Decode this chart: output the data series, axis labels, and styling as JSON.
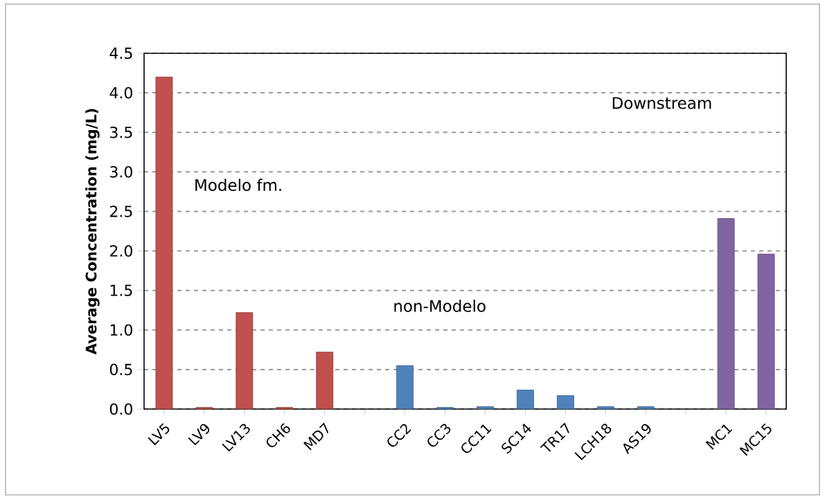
{
  "chart_data": {
    "type": "bar",
    "ylabel": "Average Concentration (mg/L)",
    "categories": [
      "LV5",
      "LV9",
      "LV13",
      "CH6",
      "MD7",
      null,
      "CC2",
      "CC3",
      "CC11",
      "SC14",
      "TR17",
      "LCH18",
      "AS19",
      null,
      "MC1",
      "MC15"
    ],
    "values": [
      4.2,
      0.02,
      1.22,
      0.02,
      0.72,
      null,
      0.55,
      0.02,
      0.03,
      0.24,
      0.17,
      0.03,
      0.03,
      null,
      2.41,
      1.96
    ],
    "colors": [
      "#c0504d",
      "#c0504d",
      "#c0504d",
      "#c0504d",
      "#c0504d",
      null,
      "#4f81bd",
      "#4f81bd",
      "#4f81bd",
      "#4f81bd",
      "#4f81bd",
      "#4f81bd",
      "#4f81bd",
      null,
      "#8064a2",
      "#8064a2"
    ],
    "ylim": [
      0,
      4.5
    ],
    "yticks": [
      {
        "value": 0,
        "label": "0.0"
      },
      {
        "value": 0.5,
        "label": "0.5"
      },
      {
        "value": 1,
        "label": "1.0"
      },
      {
        "value": 1.5,
        "label": "1.5"
      },
      {
        "value": 2,
        "label": "2.0"
      },
      {
        "value": 2.5,
        "label": "2.5"
      },
      {
        "value": 3,
        "label": "3.0"
      },
      {
        "value": 3.5,
        "label": "3.5"
      },
      {
        "value": 4,
        "label": "4.0"
      },
      {
        "value": 4.5,
        "label": "4.5"
      }
    ],
    "grid": "y",
    "annotations": [
      "Modelo fm.",
      "non-Modelo",
      "Downstream"
    ]
  }
}
